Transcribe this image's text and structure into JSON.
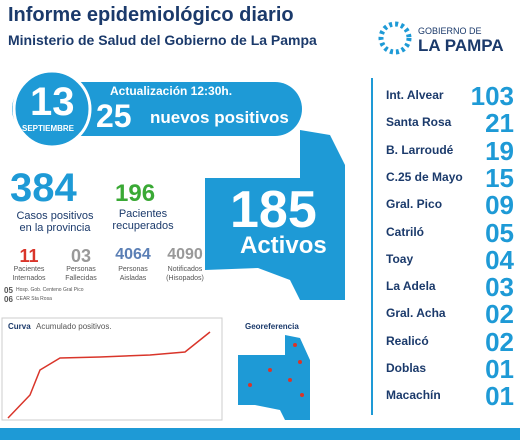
{
  "header": {
    "title": "Informe epidemiológico diario",
    "subtitle": "Ministerio de Salud del Gobierno de La Pampa",
    "logo_top": "GOBIERNO DE",
    "logo_bottom": "LA PAMPA"
  },
  "date": {
    "day": "13",
    "month": "SEPTIEMBRE",
    "update": "Actualización 12:30h.",
    "new_count": "25",
    "new_label": "nuevos positivos"
  },
  "stats": {
    "cases": "384",
    "cases_label": "Casos positivos en la provincia",
    "recovered": "196",
    "recovered_label": "Pacientes recuperados",
    "small": [
      {
        "value": "11",
        "label": "Pacientes",
        "label2": "Internados"
      },
      {
        "value": "03",
        "label": "Personas",
        "label2": "Fallecidas"
      },
      {
        "value": "4064",
        "label": "Personas",
        "label2": "Aisladas"
      },
      {
        "value": "4090",
        "label": "Notificados",
        "label2": "(Hisopados)"
      }
    ],
    "notes": [
      {
        "value": "05",
        "label": "Hosp. Gob. Centeno Gral Pico"
      },
      {
        "value": "06",
        "label": "CEAR Sta Rosa"
      }
    ]
  },
  "map": {
    "active": "185",
    "active_label": "Activos"
  },
  "curve": {
    "title": "Curva",
    "subtitle": "Acumulado positivos."
  },
  "geo": {
    "title": "Georeferencia"
  },
  "localities": [
    {
      "name": "Int. Alvear",
      "count": "103"
    },
    {
      "name": "Santa Rosa",
      "count": "21"
    },
    {
      "name": "B. Larroudé",
      "count": "19"
    },
    {
      "name": "C.25 de Mayo",
      "count": "15"
    },
    {
      "name": "Gral. Pico",
      "count": "09"
    },
    {
      "name": "Catriló",
      "count": "05"
    },
    {
      "name": "Toay",
      "count": "04"
    },
    {
      "name": "La Adela",
      "count": "03"
    },
    {
      "name": "Gral. Acha",
      "count": "02"
    },
    {
      "name": "Realicó",
      "count": "02"
    },
    {
      "name": "Doblas",
      "count": "01"
    },
    {
      "name": "Macachín",
      "count": "01"
    }
  ]
}
